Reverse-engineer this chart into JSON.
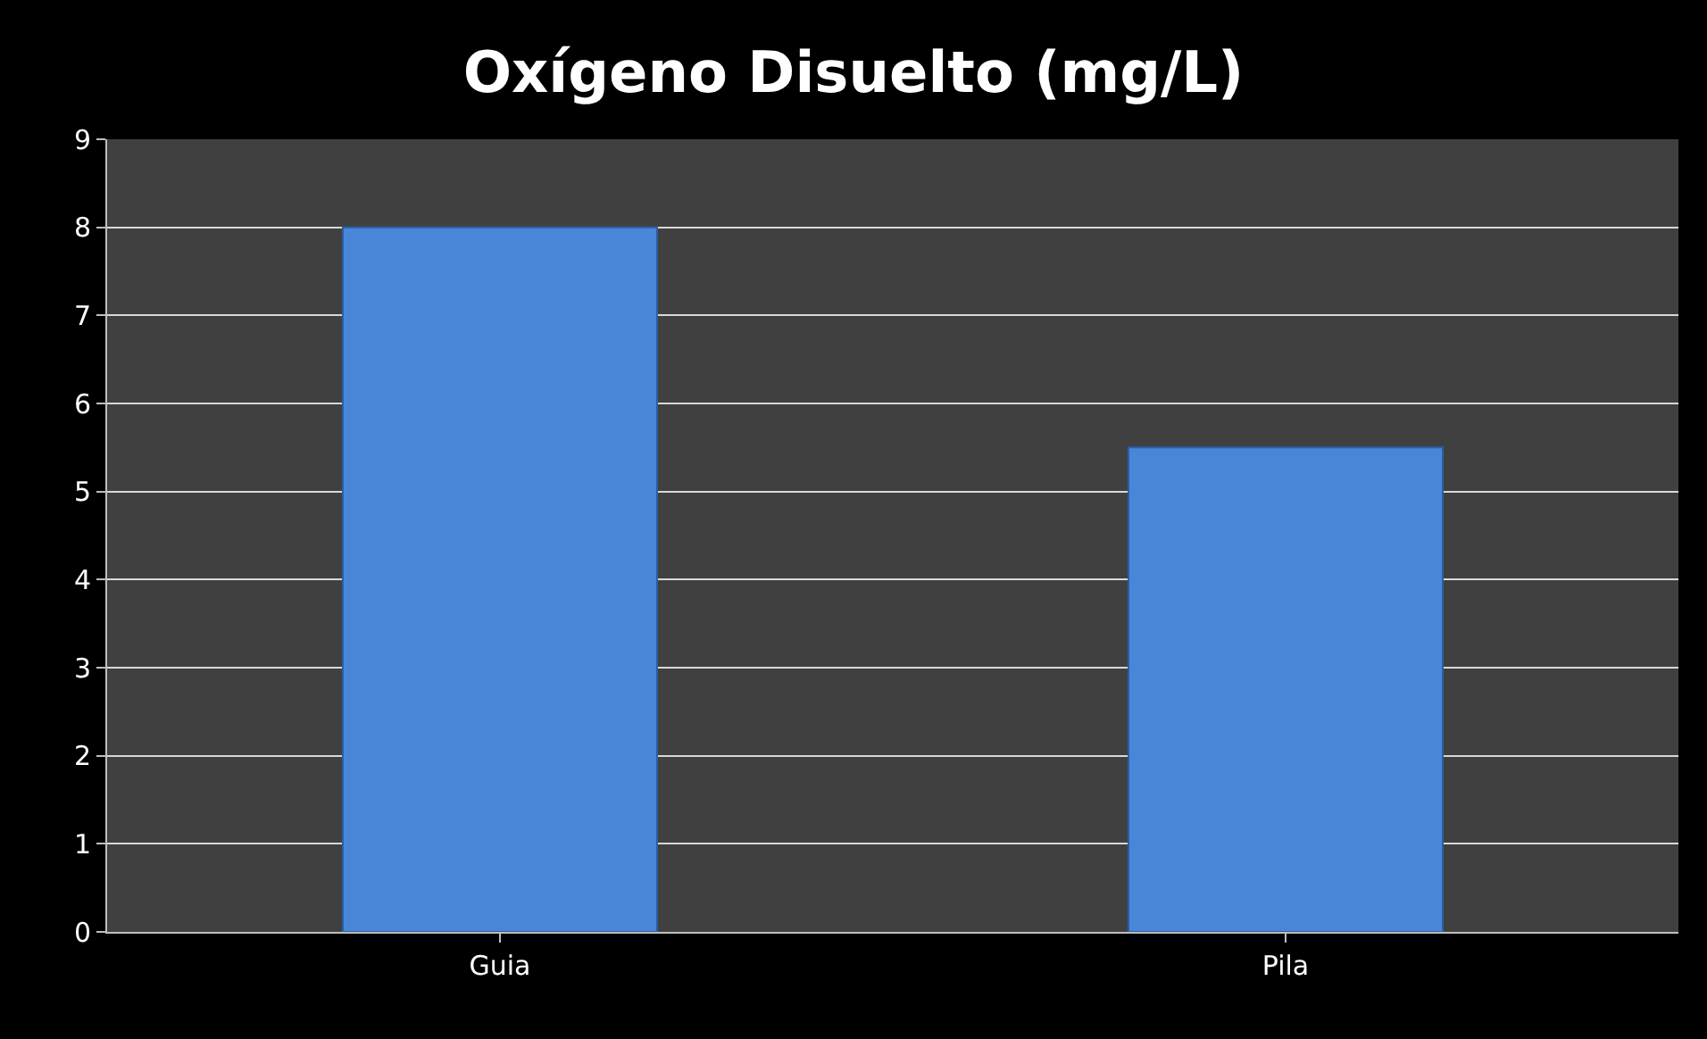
{
  "chart_data": {
    "type": "bar",
    "title": "Oxígeno Disuelto (mg/L)",
    "categories": [
      "Guia",
      "Pila"
    ],
    "values": [
      8,
      5.5
    ],
    "color": "#4a86d8",
    "ylim": [
      0,
      9
    ],
    "yticks": [
      0,
      1,
      2,
      3,
      4,
      5,
      6,
      7,
      8,
      9
    ],
    "grid": "y",
    "legend": false
  }
}
